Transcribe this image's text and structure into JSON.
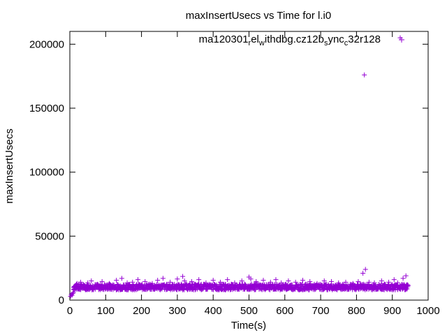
{
  "chart_data": {
    "type": "scatter",
    "title": "maxInsertUsecs vs Time for l.i0",
    "xlabel": "Time(s)",
    "ylabel": "maxInsertUsecs",
    "xlim": [
      0,
      1000
    ],
    "ylim": [
      0,
      210000
    ],
    "x_ticks": [
      0,
      100,
      200,
      300,
      400,
      500,
      600,
      700,
      800,
      900,
      1000
    ],
    "y_ticks": [
      0,
      50000,
      100000,
      150000,
      200000
    ],
    "x_tick_labels": [
      "0",
      "100",
      "200",
      "300",
      "400",
      "500",
      "600",
      "700",
      "800",
      "900",
      "1000"
    ],
    "y_tick_labels": [
      "0",
      "50000",
      "100000",
      "150000",
      "200000"
    ],
    "grid": false,
    "legend_position": "top-right",
    "legend": {
      "base": "ma120301",
      "parts": [
        {
          "text": "r",
          "sub": true
        },
        {
          "text": "el",
          "sub": false
        },
        {
          "text": "w",
          "sub": true
        },
        {
          "text": "ithdbg.cz12b",
          "sub": false
        },
        {
          "text": "s",
          "sub": true
        },
        {
          "text": "ync",
          "sub": false
        },
        {
          "text": "c",
          "sub": true
        },
        {
          "text": "32r128",
          "sub": false
        }
      ]
    },
    "series": [
      {
        "color": "#9400d3",
        "marker": "plus",
        "x": [
          2,
          4,
          6,
          8,
          10,
          12,
          16,
          20,
          25,
          30,
          40,
          50,
          60,
          75,
          90,
          110,
          130,
          145,
          160,
          175,
          190,
          210,
          230,
          245,
          260,
          280,
          300,
          315,
          320,
          340,
          360,
          380,
          400,
          420,
          440,
          460,
          480,
          500,
          505,
          520,
          540,
          560,
          575,
          590,
          610,
          630,
          650,
          670,
          690,
          710,
          730,
          750,
          770,
          790,
          805,
          818,
          822,
          825,
          835,
          850,
          870,
          890,
          905,
          915,
          922,
          930,
          938,
          942
        ],
        "y": [
          3000,
          4500,
          3800,
          5200,
          6000,
          8000,
          11000,
          13000,
          12500,
          14000,
          11500,
          13500,
          15000,
          12000,
          14500,
          13000,
          15500,
          17000,
          13500,
          14000,
          16000,
          14500,
          13000,
          15500,
          17000,
          14000,
          16500,
          18500,
          15000,
          14500,
          16000,
          13500,
          15500,
          14000,
          16000,
          13500,
          15000,
          18000,
          16500,
          14500,
          15500,
          14000,
          16000,
          13500,
          15000,
          14000,
          15500,
          14500,
          13000,
          15000,
          14500,
          13500,
          14000,
          13000,
          14500,
          21000,
          176000,
          24000,
          14000,
          13500,
          15000,
          14000,
          16000,
          13500,
          205000,
          17000,
          19000,
          12000
        ]
      }
    ],
    "band": {
      "x_start": 10,
      "x_end": 945,
      "y_low": 8000,
      "y_high": 12500
    }
  }
}
